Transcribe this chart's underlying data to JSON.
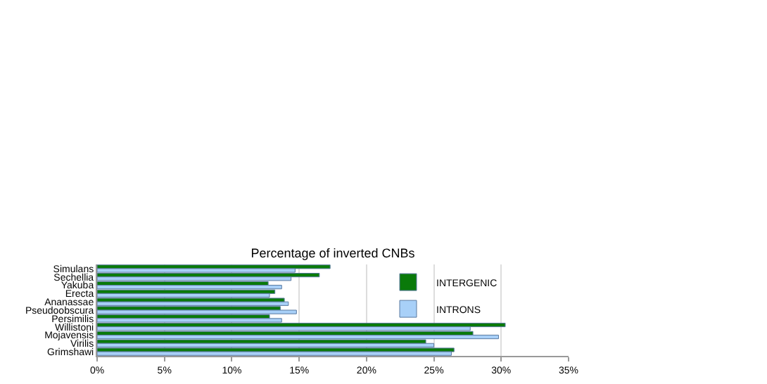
{
  "chart_data": {
    "type": "bar",
    "orientation": "horizontal",
    "title": "Percentage of inverted CNBs",
    "categories": [
      "Simulans",
      "Sechellia",
      "Yakuba",
      "Erecta",
      "Ananassae",
      "Pseudoobscura",
      "Persimilis",
      "Willistoni",
      "Mojavensis",
      "Virilis",
      "Grimshawi"
    ],
    "series": [
      {
        "name": "INTERGENIC",
        "color": "#0a7a0a",
        "values": [
          17.3,
          16.5,
          12.7,
          13.2,
          13.9,
          13.6,
          12.8,
          30.3,
          27.9,
          24.4,
          26.5
        ]
      },
      {
        "name": "INTRONS",
        "color": "#a8d0f8",
        "values": [
          14.7,
          14.4,
          13.7,
          12.8,
          14.2,
          14.8,
          13.7,
          27.7,
          29.8,
          25.0,
          26.3
        ]
      }
    ],
    "xlim": [
      0,
      35
    ],
    "xticks": [
      {
        "value": 0,
        "label": "0%"
      },
      {
        "value": 5,
        "label": "5%"
      },
      {
        "value": 10,
        "label": "10%"
      },
      {
        "value": 15,
        "label": "15%"
      },
      {
        "value": 20,
        "label": "20%"
      },
      {
        "value": 25,
        "label": "25%"
      },
      {
        "value": 30,
        "label": "30%"
      },
      {
        "value": 35,
        "label": "35%"
      }
    ],
    "grid": "x",
    "legend": "right"
  }
}
